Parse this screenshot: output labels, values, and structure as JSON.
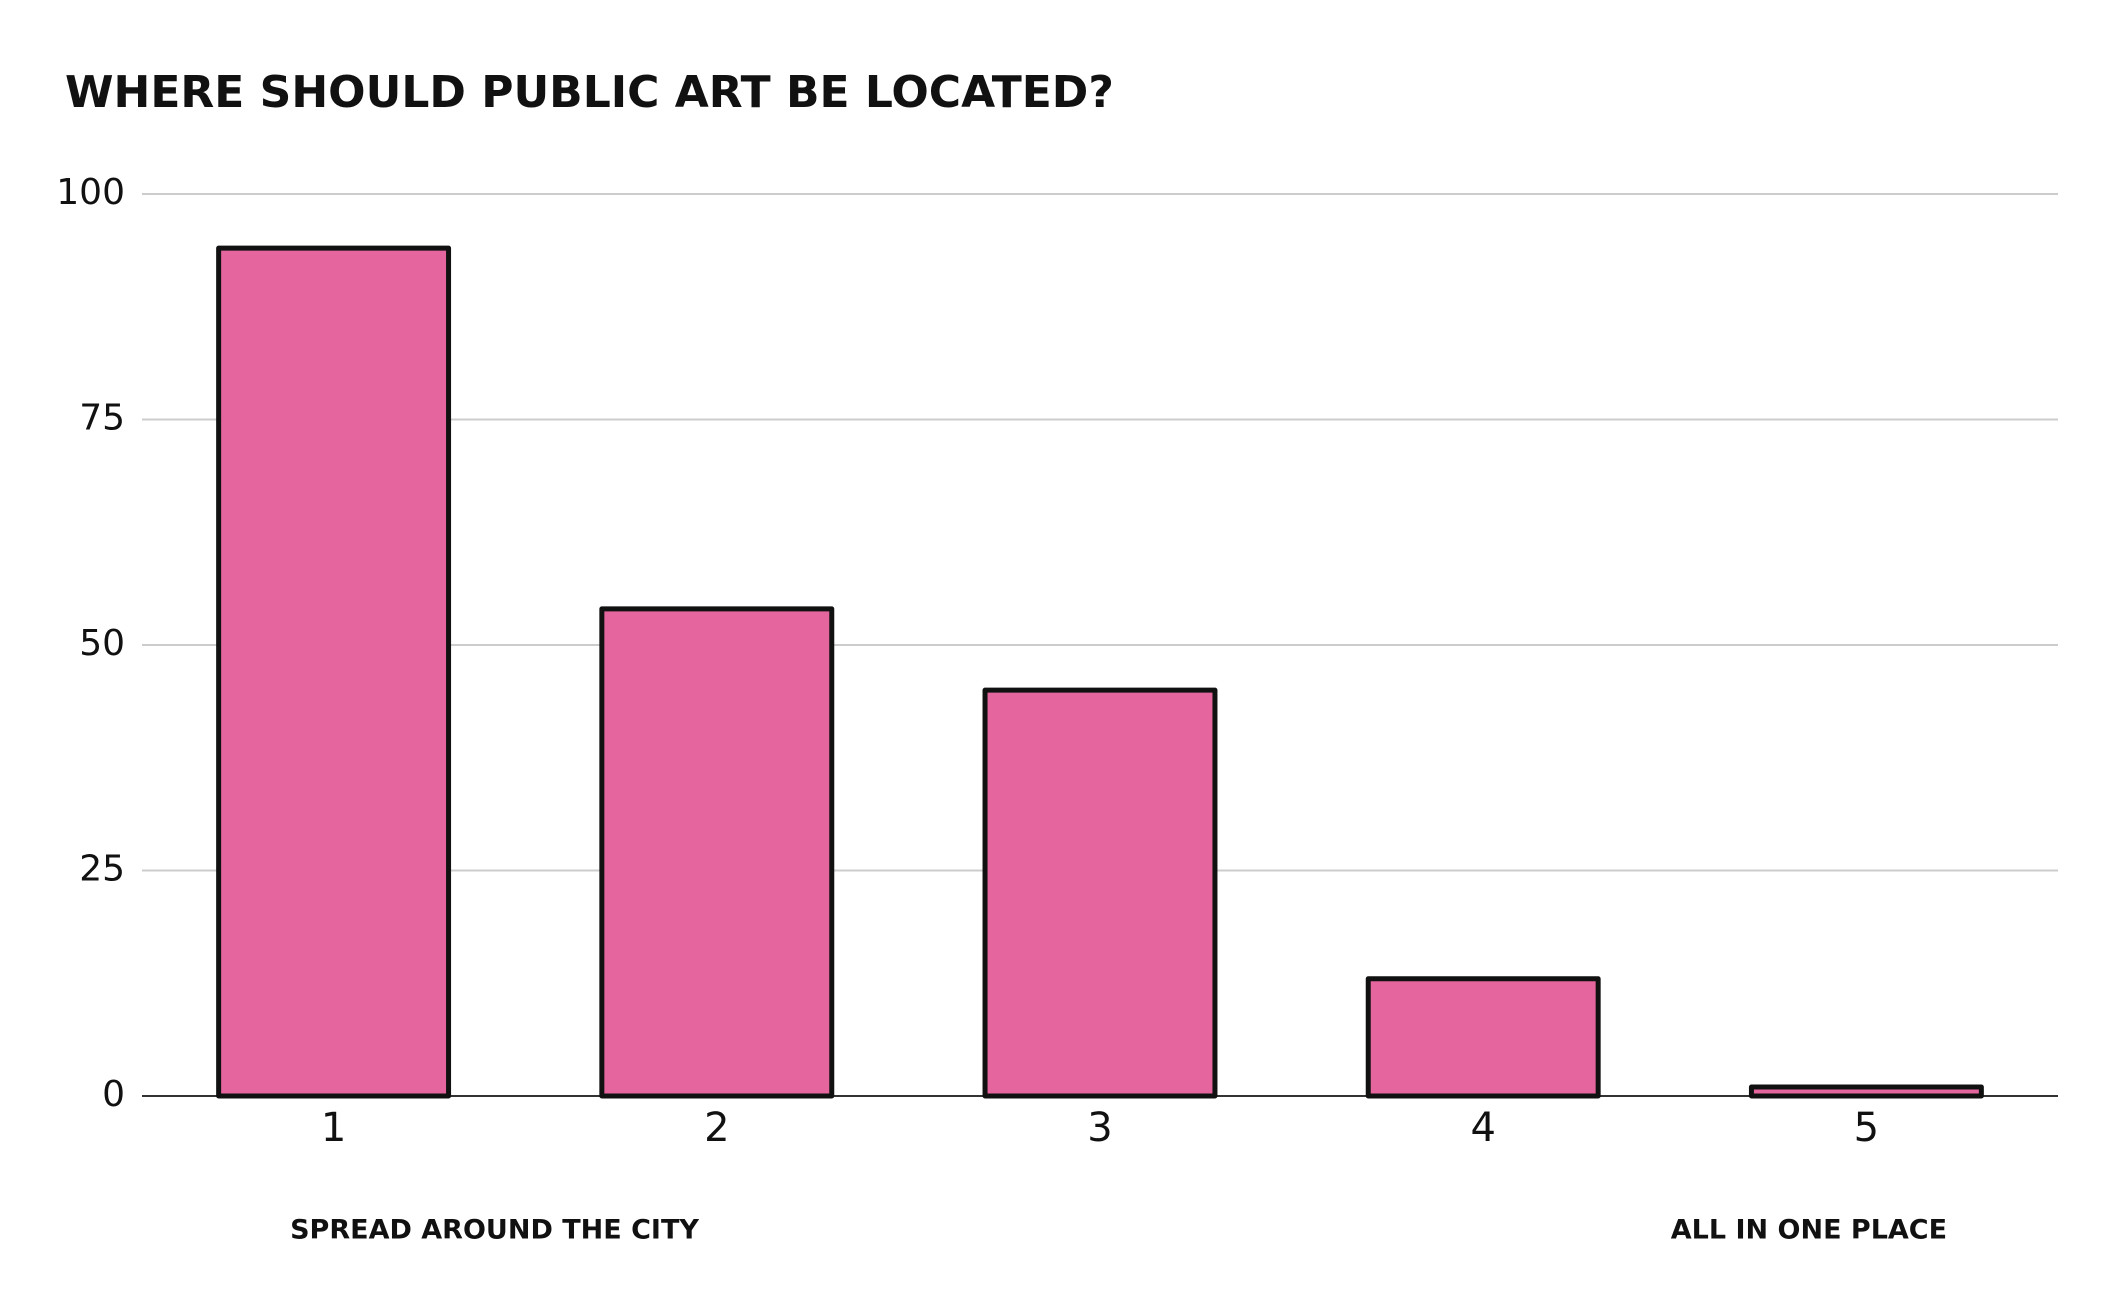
{
  "chart_data": {
    "type": "bar",
    "title": "WHERE SHOULD PUBLIC ART BE LOCATED?",
    "categories": [
      "1",
      "2",
      "3",
      "4",
      "5"
    ],
    "values": [
      94,
      54,
      45,
      13,
      1
    ],
    "color": "#e5669e",
    "ylim": [
      0,
      100
    ],
    "yticks": [
      0,
      25,
      50,
      75,
      100
    ],
    "grid": true,
    "annotations": [
      "SPREAD AROUND THE CITY",
      "ALL IN ONE PLACE"
    ]
  }
}
